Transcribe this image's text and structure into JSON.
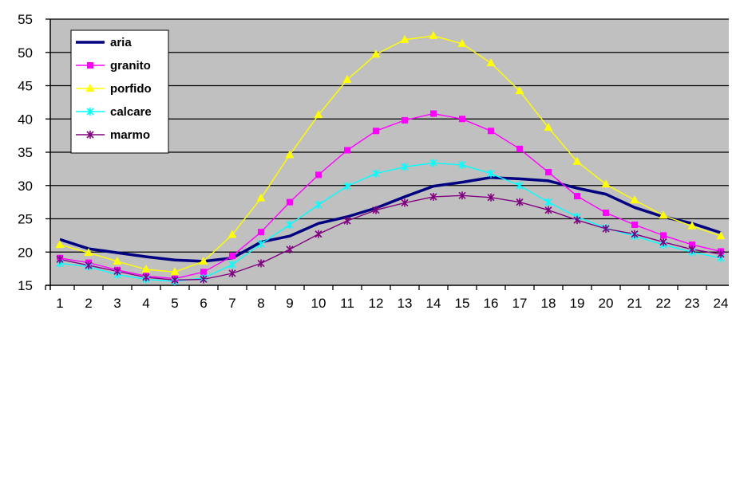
{
  "chart_data": {
    "type": "line",
    "x": [
      1,
      2,
      3,
      4,
      5,
      6,
      7,
      8,
      9,
      10,
      11,
      12,
      13,
      14,
      15,
      16,
      17,
      18,
      19,
      20,
      21,
      22,
      23,
      24
    ],
    "ylim": [
      15,
      55
    ],
    "yticks": [
      15,
      20,
      25,
      30,
      35,
      40,
      45,
      50,
      55
    ],
    "xticks": [
      "1",
      "2",
      "3",
      "4",
      "5",
      "6",
      "7",
      "8",
      "9",
      "10",
      "11",
      "12",
      "13",
      "14",
      "15",
      "16",
      "17",
      "18",
      "19",
      "20",
      "21",
      "22",
      "23",
      "24"
    ],
    "grid": true,
    "legend_position": "top-left",
    "plot_background": "#c0c0c0",
    "series": [
      {
        "name": "aria",
        "color": "#000080",
        "marker": "none",
        "values": [
          21.9,
          20.5,
          19.9,
          19.3,
          18.8,
          18.6,
          19.1,
          21.5,
          22.4,
          24.3,
          25.3,
          26.6,
          28.3,
          29.9,
          30.5,
          31.2,
          31.0,
          30.7,
          29.6,
          28.7,
          26.7,
          25.3,
          24.3,
          22.9
        ]
      },
      {
        "name": "granito",
        "color": "#ff00ff",
        "marker": "square",
        "values": [
          19.1,
          18.4,
          17.3,
          16.4,
          16.0,
          17.0,
          19.4,
          23.0,
          27.5,
          31.6,
          35.3,
          38.2,
          39.8,
          40.8,
          40.0,
          38.2,
          35.5,
          32.0,
          28.4,
          25.9,
          24.1,
          22.5,
          21.1,
          20.1
        ]
      },
      {
        "name": "porfido",
        "color": "#ffff00",
        "marker": "triangle",
        "values": [
          21.1,
          19.9,
          18.6,
          17.4,
          17.0,
          18.6,
          22.6,
          28.1,
          34.6,
          40.6,
          45.9,
          49.7,
          51.9,
          52.5,
          51.3,
          48.4,
          44.2,
          38.7,
          33.6,
          30.2,
          27.8,
          25.5,
          23.9,
          22.4
        ]
      },
      {
        "name": "calcare",
        "color": "#00ffff",
        "marker": "star",
        "values": [
          18.3,
          17.8,
          16.6,
          15.9,
          15.6,
          16.1,
          18.1,
          21.2,
          24.1,
          27.1,
          29.9,
          31.8,
          32.8,
          33.4,
          33.1,
          31.8,
          30.0,
          27.5,
          25.3,
          23.6,
          22.4,
          21.1,
          20.0,
          19.1
        ]
      },
      {
        "name": "marmo",
        "color": "#800080",
        "marker": "star",
        "values": [
          18.9,
          18.0,
          17.1,
          16.2,
          15.8,
          15.9,
          16.8,
          18.3,
          20.4,
          22.7,
          24.7,
          26.3,
          27.4,
          28.3,
          28.5,
          28.2,
          27.5,
          26.3,
          24.8,
          23.5,
          22.7,
          21.5,
          20.4,
          19.7
        ]
      }
    ]
  }
}
